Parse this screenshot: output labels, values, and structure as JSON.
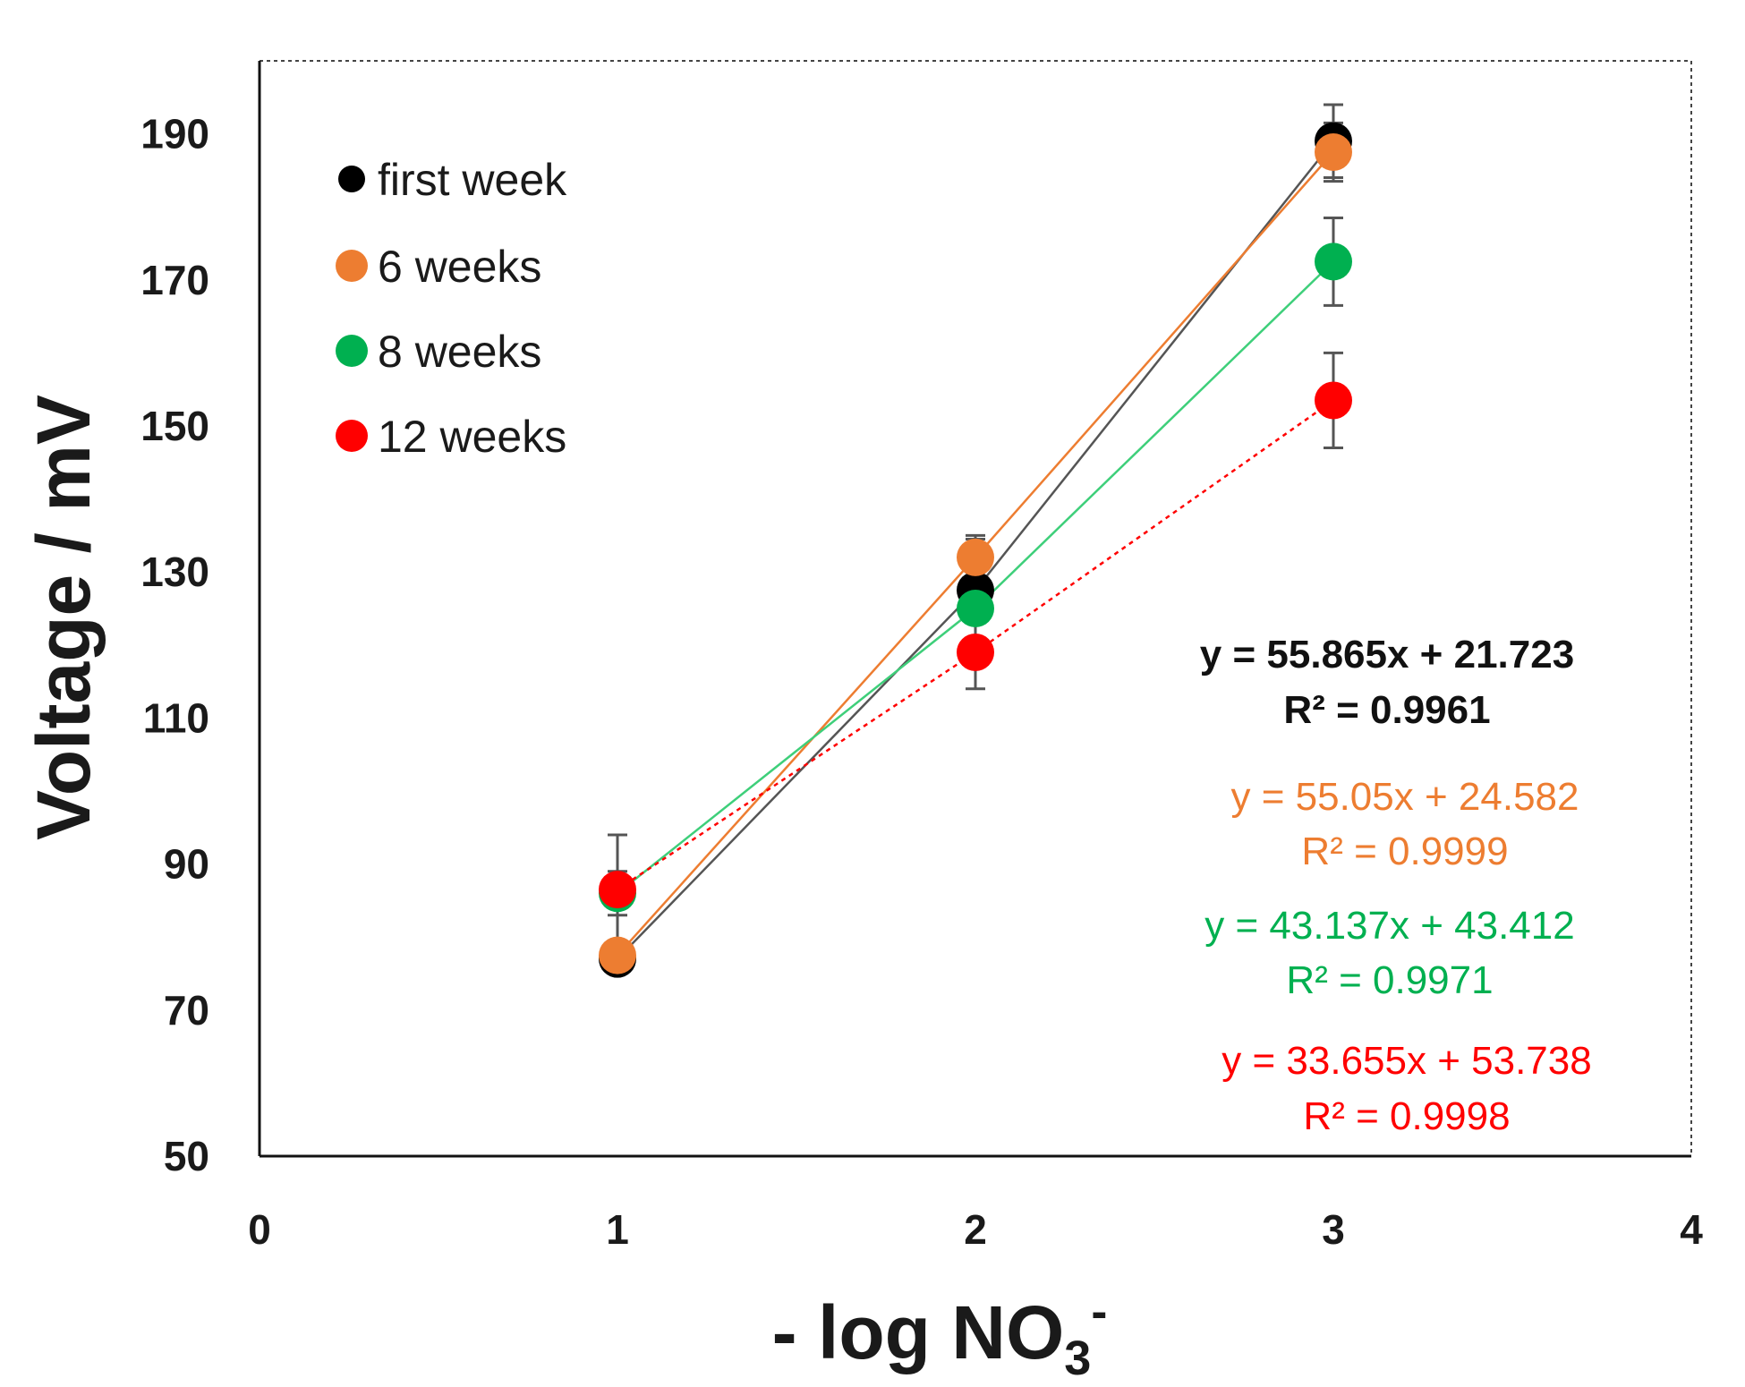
{
  "chart_data": {
    "type": "scatter",
    "xlabel": "- log NO",
    "xlabel_sub": "3",
    "xlabel_sup": "-",
    "ylabel": "Voltage / mV",
    "xlim": [
      0,
      4
    ],
    "ylim": [
      50,
      200
    ],
    "x_ticks": [
      "0",
      "1",
      "2",
      "3",
      "4"
    ],
    "y_ticks": [
      "50",
      "70",
      "90",
      "110",
      "130",
      "150",
      "170",
      "190"
    ],
    "legend_position": "top-left",
    "series": [
      {
        "name": "first week",
        "color": "#000000",
        "trend_color": "#555555",
        "trend_style": "solid",
        "x": [
          1,
          2,
          3
        ],
        "y": [
          77,
          127.5,
          189
        ],
        "error": [
          2,
          7,
          5
        ],
        "trendline": {
          "slope": 55.865,
          "intercept": 21.723
        },
        "equation": "y = 55.865x + 21.723",
        "r2": "R² = 0.9961"
      },
      {
        "name": "6 weeks",
        "color": "#ed7d31",
        "trend_color": "#ed7d31",
        "trend_style": "solid",
        "x": [
          1,
          2,
          3
        ],
        "y": [
          77.5,
          132,
          187.5
        ],
        "error": [
          2,
          3,
          4
        ],
        "trendline": {
          "slope": 55.05,
          "intercept": 24.582
        },
        "equation": "y = 55.05x + 24.582",
        "r2": "R² = 0.9999"
      },
      {
        "name": "8 weeks",
        "color": "#00b050",
        "trend_color": "#3ecf7a",
        "trend_style": "solid",
        "x": [
          1,
          2,
          3
        ],
        "y": [
          86,
          125,
          172.5
        ],
        "error": [
          3,
          5,
          6
        ],
        "trendline": {
          "slope": 43.137,
          "intercept": 43.412
        },
        "equation": "y = 43.137x + 43.412",
        "r2": "R² = 0.9971"
      },
      {
        "name": "12 weeks",
        "color": "#ff0000",
        "trend_color": "#ff0000",
        "trend_style": "dotted",
        "x": [
          1,
          2,
          3
        ],
        "y": [
          86.5,
          119,
          153.5
        ],
        "error": [
          7.5,
          5,
          6.5
        ],
        "trendline": {
          "slope": 33.655,
          "intercept": 53.738
        },
        "equation": "y = 33.655x + 53.738",
        "r2": "R² = 0.9998"
      }
    ]
  }
}
